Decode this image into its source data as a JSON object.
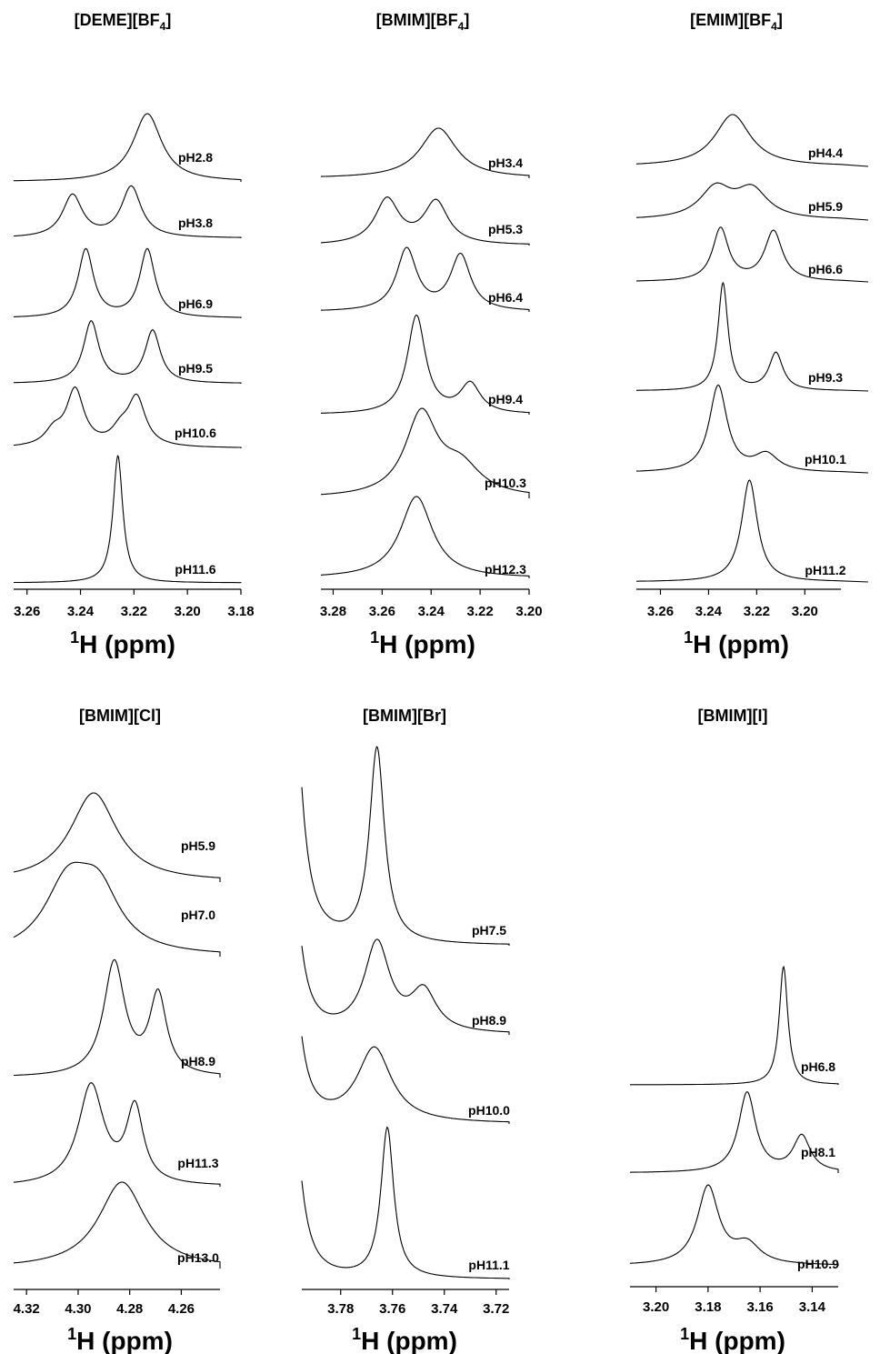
{
  "chart_data": [
    {
      "type": "line",
      "title": "[DEME][BF4]",
      "title_main": "[DEME][BF",
      "title_sub": "4",
      "title_end": "]",
      "xlabel": "(ppm)",
      "xlabel_sup": "1",
      "xlabel_nucleus": "H",
      "xlim": [
        3.265,
        3.18
      ],
      "ticks": [
        "3.26",
        "3.24",
        "3.22",
        "3.20",
        "3.18"
      ],
      "tick_values": [
        3.26,
        3.24,
        3.22,
        3.2,
        3.18
      ],
      "series": [
        {
          "name": "pH2.8",
          "peaks": [
            {
              "ppm": 3.215,
              "height": 1.0,
              "width": 0.0065
            }
          ]
        },
        {
          "name": "pH3.8",
          "peaks": [
            {
              "ppm": 3.243,
              "height": 0.75,
              "width": 0.0045
            },
            {
              "ppm": 3.221,
              "height": 0.9,
              "width": 0.0045
            }
          ]
        },
        {
          "name": "pH6.9",
          "peaks": [
            {
              "ppm": 3.238,
              "height": 1.0,
              "width": 0.0035
            },
            {
              "ppm": 3.215,
              "height": 1.0,
              "width": 0.0035
            }
          ]
        },
        {
          "name": "pH9.5",
          "peaks": [
            {
              "ppm": 3.236,
              "height": 1.0,
              "width": 0.0035
            },
            {
              "ppm": 3.213,
              "height": 0.85,
              "width": 0.0035
            }
          ]
        },
        {
          "name": "pH10.6",
          "peaks": [
            {
              "ppm": 3.242,
              "height": 1.0,
              "width": 0.004
            },
            {
              "ppm": 3.219,
              "height": 0.85,
              "width": 0.004
            },
            {
              "ppm": 3.25,
              "height": 0.25,
              "width": 0.004
            },
            {
              "ppm": 3.225,
              "height": 0.25,
              "width": 0.004
            }
          ]
        },
        {
          "name": "pH11.6",
          "peaks": [
            {
              "ppm": 3.226,
              "height": 1.0,
              "width": 0.0022
            }
          ]
        }
      ]
    },
    {
      "type": "line",
      "title": "[BMIM][BF4]",
      "title_main": "[BMIM][BF",
      "title_sub": "4",
      "title_end": "]",
      "xlabel": "(ppm)",
      "xlabel_sup": "1",
      "xlabel_nucleus": "H",
      "xlim": [
        3.285,
        3.2
      ],
      "ticks": [
        "3.28",
        "3.26",
        "3.24",
        "3.22",
        "3.20"
      ],
      "tick_values": [
        3.28,
        3.26,
        3.24,
        3.22,
        3.2
      ],
      "series": [
        {
          "name": "pH3.4",
          "peaks": [
            {
              "ppm": 3.237,
              "height": 1.0,
              "width": 0.009
            }
          ]
        },
        {
          "name": "pH5.3",
          "peaks": [
            {
              "ppm": 3.258,
              "height": 0.9,
              "width": 0.006
            },
            {
              "ppm": 3.238,
              "height": 0.85,
              "width": 0.006
            }
          ]
        },
        {
          "name": "pH6.4",
          "peaks": [
            {
              "ppm": 3.25,
              "height": 1.0,
              "width": 0.005
            },
            {
              "ppm": 3.228,
              "height": 0.9,
              "width": 0.005
            }
          ]
        },
        {
          "name": "pH9.4",
          "peaks": [
            {
              "ppm": 3.246,
              "height": 1.0,
              "width": 0.0045
            },
            {
              "ppm": 3.224,
              "height": 0.3,
              "width": 0.005
            }
          ]
        },
        {
          "name": "pH10.3",
          "peaks": [
            {
              "ppm": 3.244,
              "height": 1.0,
              "width": 0.008
            },
            {
              "ppm": 3.228,
              "height": 0.35,
              "width": 0.01
            }
          ]
        },
        {
          "name": "pH12.3",
          "peaks": [
            {
              "ppm": 3.246,
              "height": 1.0,
              "width": 0.008
            }
          ]
        }
      ]
    },
    {
      "type": "line",
      "title": "[EMIM][BF4]",
      "title_main": "[EMIM][BF",
      "title_sub": "4",
      "title_end": "]",
      "xlabel": "(ppm)",
      "xlabel_sup": "1",
      "xlabel_nucleus": "H",
      "xlim": [
        3.27,
        3.185
      ],
      "ticks": [
        "3.26",
        "3.24",
        "3.22",
        "3.20"
      ],
      "tick_values": [
        3.26,
        3.24,
        3.22,
        3.2
      ],
      "series": [
        {
          "name": "pH4.4",
          "peaks": [
            {
              "ppm": 3.23,
              "height": 1.0,
              "width": 0.009
            }
          ]
        },
        {
          "name": "pH5.9",
          "peaks": [
            {
              "ppm": 3.237,
              "height": 0.8,
              "width": 0.008
            },
            {
              "ppm": 3.222,
              "height": 0.75,
              "width": 0.008
            }
          ]
        },
        {
          "name": "pH6.6",
          "peaks": [
            {
              "ppm": 3.235,
              "height": 1.0,
              "width": 0.004
            },
            {
              "ppm": 3.213,
              "height": 0.95,
              "width": 0.0045
            }
          ]
        },
        {
          "name": "pH9.3",
          "peaks": [
            {
              "ppm": 3.234,
              "height": 1.0,
              "width": 0.0025
            },
            {
              "ppm": 3.212,
              "height": 0.35,
              "width": 0.0035
            }
          ]
        },
        {
          "name": "pH10.1",
          "peaks": [
            {
              "ppm": 3.236,
              "height": 1.0,
              "width": 0.0045
            },
            {
              "ppm": 3.216,
              "height": 0.2,
              "width": 0.006
            }
          ]
        },
        {
          "name": "pH11.2",
          "peaks": [
            {
              "ppm": 3.223,
              "height": 1.0,
              "width": 0.004
            }
          ]
        }
      ]
    },
    {
      "type": "line",
      "title": "[BMIM][Cl]",
      "title_main": "[BMIM][Cl]",
      "title_sub": "",
      "title_end": "",
      "xlabel": "(ppm)",
      "xlabel_sup": "1",
      "xlabel_nucleus": "H",
      "xlim": [
        4.325,
        4.245
      ],
      "ticks": [
        "4.32",
        "4.30",
        "4.28",
        "4.26"
      ],
      "tick_values": [
        4.32,
        4.3,
        4.28,
        4.26
      ],
      "series": [
        {
          "name": "pH5.9",
          "peaks": [
            {
              "ppm": 4.294,
              "height": 1.0,
              "width": 0.011
            }
          ]
        },
        {
          "name": "pH7.0",
          "peaks": [
            {
              "ppm": 4.304,
              "height": 0.85,
              "width": 0.011
            },
            {
              "ppm": 4.292,
              "height": 0.7,
              "width": 0.01
            }
          ]
        },
        {
          "name": "pH8.9",
          "peaks": [
            {
              "ppm": 4.286,
              "height": 1.0,
              "width": 0.005
            },
            {
              "ppm": 4.269,
              "height": 0.7,
              "width": 0.004
            }
          ]
        },
        {
          "name": "pH11.3",
          "peaks": [
            {
              "ppm": 4.295,
              "height": 1.0,
              "width": 0.006
            },
            {
              "ppm": 4.278,
              "height": 0.75,
              "width": 0.004
            }
          ]
        },
        {
          "name": "pH13.0",
          "peaks": [
            {
              "ppm": 4.283,
              "height": 1.0,
              "width": 0.011
            }
          ]
        }
      ]
    },
    {
      "type": "line",
      "title": "[BMIM][Br]",
      "title_main": "[BMIM][Br]",
      "title_sub": "",
      "title_end": "",
      "xlabel": "(ppm)",
      "xlabel_sup": "1",
      "xlabel_nucleus": "H",
      "xlim": [
        3.795,
        3.715
      ],
      "ticks": [
        "3.78",
        "3.76",
        "3.74",
        "3.72"
      ],
      "tick_values": [
        3.78,
        3.76,
        3.74,
        3.72
      ],
      "series": [
        {
          "name": "pH7.5",
          "peaks": [
            {
              "ppm": 3.766,
              "height": 1.0,
              "width": 0.0035
            },
            {
              "ppm": 3.799,
              "height": 1.6,
              "width": 0.004
            }
          ]
        },
        {
          "name": "pH8.9",
          "peaks": [
            {
              "ppm": 3.766,
              "height": 1.0,
              "width": 0.006
            },
            {
              "ppm": 3.748,
              "height": 0.45,
              "width": 0.006
            },
            {
              "ppm": 3.799,
              "height": 1.9,
              "width": 0.004
            }
          ]
        },
        {
          "name": "pH10.0",
          "peaks": [
            {
              "ppm": 3.767,
              "height": 1.0,
              "width": 0.008
            },
            {
              "ppm": 3.799,
              "height": 2.2,
              "width": 0.004
            }
          ]
        },
        {
          "name": "pH11.1",
          "peaks": [
            {
              "ppm": 3.762,
              "height": 1.0,
              "width": 0.003
            },
            {
              "ppm": 3.799,
              "height": 1.3,
              "width": 0.004
            }
          ]
        }
      ]
    },
    {
      "type": "line",
      "title": "[BMIM][I]",
      "title_main": "[BMIM][I]",
      "title_sub": "",
      "title_end": "",
      "xlabel": "(ppm)",
      "xlabel_sup": "1",
      "xlabel_nucleus": "H",
      "xlim": [
        3.21,
        3.13
      ],
      "ticks": [
        "3.20",
        "3.18",
        "3.16",
        "3.14"
      ],
      "tick_values": [
        3.2,
        3.18,
        3.16,
        3.14
      ],
      "series": [
        {
          "name": "pH6.8",
          "peaks": [
            {
              "ppm": 3.151,
              "height": 1.0,
              "width": 0.002
            }
          ]
        },
        {
          "name": "pH8.1",
          "peaks": [
            {
              "ppm": 3.165,
              "height": 1.0,
              "width": 0.004
            },
            {
              "ppm": 3.144,
              "height": 0.45,
              "width": 0.004
            }
          ]
        },
        {
          "name": "pH10.9",
          "peaks": [
            {
              "ppm": 3.18,
              "height": 1.0,
              "width": 0.005
            },
            {
              "ppm": 3.165,
              "height": 0.25,
              "width": 0.006
            }
          ]
        }
      ]
    }
  ]
}
